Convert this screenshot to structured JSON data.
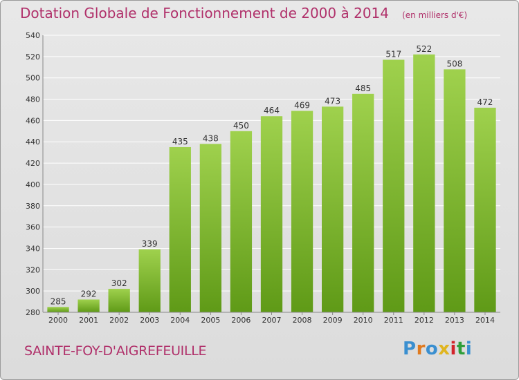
{
  "title": "Dotation Globale de Fonctionnement de 2000 à 2014",
  "unit_note": "(en milliers d'€)",
  "commune": "SAINTE-FOY-D'AIGREFEUILLE",
  "logo": {
    "text": "Proxiti",
    "colors": [
      "#3a8fd0",
      "#e07a1f",
      "#3a8fd0",
      "#e0b51f",
      "#d2232a",
      "#2e9e3a",
      "#3a8fd0"
    ]
  },
  "colors": {
    "bar_top": "#9fd14d",
    "bar_bottom": "#5f9a17",
    "text_accent": "#b0306a",
    "grid": "#ffffff",
    "axis_text": "#333333"
  },
  "chart_data": {
    "type": "bar",
    "title": "Dotation Globale de Fonctionnement de 2000 à 2014",
    "ylabel": "",
    "xlabel": "",
    "categories": [
      "2000",
      "2001",
      "2002",
      "2003",
      "2004",
      "2005",
      "2006",
      "2007",
      "2008",
      "2009",
      "2010",
      "2011",
      "2012",
      "2013",
      "2014"
    ],
    "values": [
      285,
      292,
      302,
      339,
      435,
      438,
      450,
      464,
      469,
      473,
      485,
      517,
      522,
      508,
      472
    ],
    "ylim": [
      280,
      540
    ],
    "yticks": [
      280,
      300,
      320,
      340,
      360,
      380,
      400,
      420,
      440,
      460,
      480,
      500,
      520,
      540
    ],
    "grid": true
  }
}
